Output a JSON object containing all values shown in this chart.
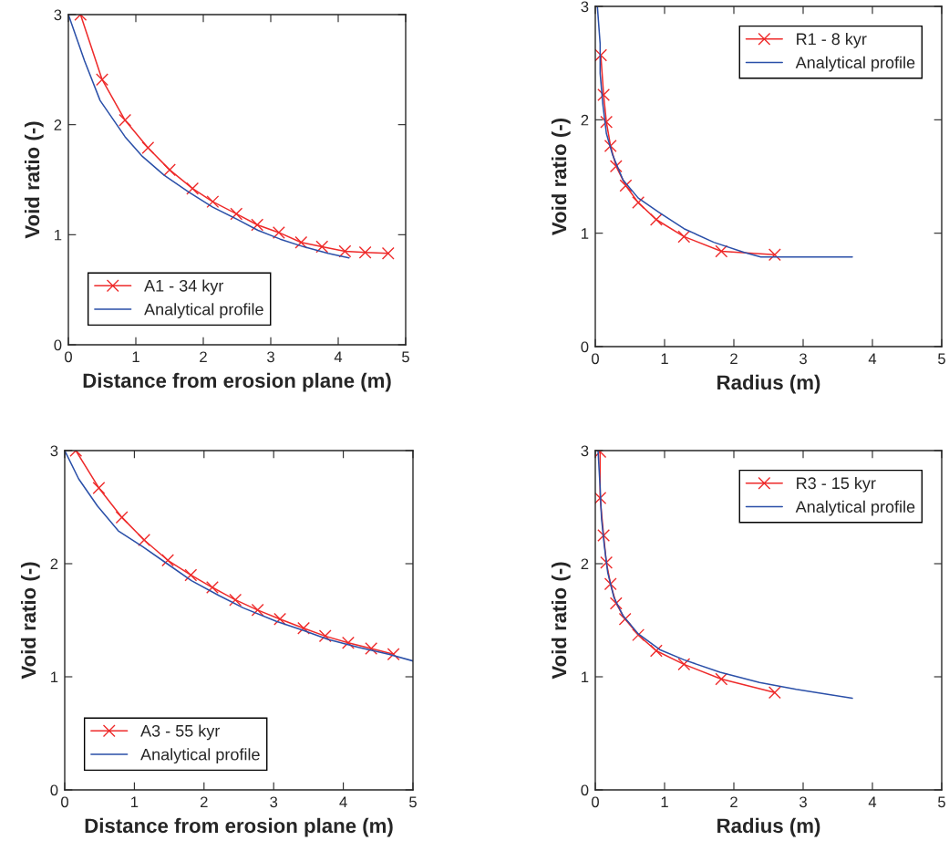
{
  "chart_data": [
    {
      "type": "line",
      "xlabel": "Distance from erosion plane (m)",
      "ylabel": "Void ratio (-)",
      "xlim": [
        0,
        5
      ],
      "ylim": [
        0,
        3
      ],
      "xticks": [
        0,
        1,
        2,
        3,
        4,
        5
      ],
      "yticks": [
        0,
        1,
        2,
        3
      ],
      "grid": false,
      "legend": "bottom left",
      "series": [
        {
          "name": "A1 - 34 kyr",
          "color": "#ee2a2a",
          "marker": "cross",
          "x": [
            0.18,
            0.5,
            0.84,
            1.18,
            1.5,
            1.84,
            2.14,
            2.49,
            2.8,
            3.12,
            3.45,
            3.76,
            4.1,
            4.4,
            4.74
          ],
          "values": [
            3.0,
            2.41,
            2.04,
            1.79,
            1.59,
            1.42,
            1.3,
            1.19,
            1.09,
            1.02,
            0.93,
            0.89,
            0.85,
            0.84,
            0.83
          ]
        },
        {
          "name": "Analytical profile",
          "color": "#2a4fa8",
          "marker": "none",
          "x": [
            0,
            0.24,
            0.47,
            0.84,
            1.1,
            1.42,
            1.78,
            2.14,
            2.5,
            2.81,
            3.14,
            3.49,
            3.85,
            4.16
          ],
          "values": [
            3.0,
            2.58,
            2.22,
            1.89,
            1.71,
            1.54,
            1.39,
            1.25,
            1.14,
            1.04,
            0.96,
            0.89,
            0.83,
            0.79
          ]
        }
      ]
    },
    {
      "type": "line",
      "xlabel": "Radius (m)",
      "ylabel": "Void ratio (-)",
      "xlim": [
        0,
        5
      ],
      "ylim": [
        0,
        3
      ],
      "xticks": [
        0,
        1,
        2,
        3,
        4,
        5
      ],
      "yticks": [
        0,
        1,
        2,
        3
      ],
      "grid": false,
      "legend": "top right",
      "series": [
        {
          "name": "R1 - 8 kyr",
          "color": "#ee2a2a",
          "marker": "cross",
          "x": [
            0.08,
            0.12,
            0.16,
            0.22,
            0.3,
            0.44,
            0.62,
            0.88,
            1.28,
            1.82,
            2.59
          ],
          "values": [
            2.57,
            2.22,
            1.98,
            1.77,
            1.59,
            1.42,
            1.27,
            1.12,
            0.97,
            0.84,
            0.81
          ]
        },
        {
          "name": "Analytical profile",
          "color": "#2a4fa8",
          "marker": "none",
          "x": [
            0.03,
            0.07,
            0.07,
            0.11,
            0.16,
            0.25,
            0.4,
            0.62,
            0.93,
            1.28,
            1.71,
            2.15,
            2.39,
            3.71
          ],
          "values": [
            3.0,
            2.67,
            2.41,
            2.13,
            1.88,
            1.69,
            1.47,
            1.31,
            1.18,
            1.04,
            0.92,
            0.83,
            0.79,
            0.79
          ]
        }
      ]
    },
    {
      "type": "line",
      "xlabel": "Distance from erosion plane (m)",
      "ylabel": "Void ratio (-)",
      "xlim": [
        0,
        5
      ],
      "ylim": [
        0,
        3
      ],
      "xticks": [
        0,
        1,
        2,
        3,
        4,
        5
      ],
      "yticks": [
        0,
        1,
        2,
        3
      ],
      "grid": false,
      "legend": "bottom left",
      "series": [
        {
          "name": "A3 - 55 kyr",
          "color": "#ee2a2a",
          "marker": "cross",
          "x": [
            0.16,
            0.49,
            0.82,
            1.14,
            1.48,
            1.81,
            2.12,
            2.45,
            2.77,
            3.09,
            3.43,
            3.74,
            4.07,
            4.4,
            4.72
          ],
          "values": [
            3.0,
            2.67,
            2.41,
            2.21,
            2.03,
            1.9,
            1.79,
            1.68,
            1.59,
            1.51,
            1.43,
            1.36,
            1.3,
            1.25,
            1.2
          ]
        },
        {
          "name": "Analytical profile",
          "color": "#2a4fa8",
          "marker": "none",
          "x": [
            0,
            0.2,
            0.47,
            0.77,
            1.12,
            1.47,
            1.82,
            2.21,
            2.56,
            3.04,
            3.43,
            3.78,
            4.22,
            4.65,
            5.0
          ],
          "values": [
            3.0,
            2.75,
            2.51,
            2.29,
            2.15,
            2.0,
            1.85,
            1.72,
            1.61,
            1.49,
            1.41,
            1.33,
            1.26,
            1.2,
            1.14
          ]
        }
      ]
    },
    {
      "type": "line",
      "xlabel": "Radius (m)",
      "ylabel": "Void ratio (-)",
      "xlim": [
        0,
        5
      ],
      "ylim": [
        0,
        3
      ],
      "xticks": [
        0,
        1,
        2,
        3,
        4,
        5
      ],
      "yticks": [
        0,
        1,
        2,
        3
      ],
      "grid": false,
      "legend": "top right",
      "series": [
        {
          "name": "R3 - 15 kyr",
          "color": "#ee2a2a",
          "marker": "cross",
          "x": [
            0.07,
            0.07,
            0.12,
            0.16,
            0.22,
            0.3,
            0.43,
            0.62,
            0.88,
            1.28,
            1.82,
            2.59
          ],
          "values": [
            2.99,
            2.58,
            2.25,
            2.01,
            1.82,
            1.65,
            1.51,
            1.37,
            1.23,
            1.11,
            0.98,
            0.86
          ]
        },
        {
          "name": "Analytical profile",
          "color": "#2a4fa8",
          "marker": "none",
          "x": [
            0.04,
            0.07,
            0.09,
            0.13,
            0.18,
            0.27,
            0.4,
            0.62,
            0.93,
            1.28,
            1.8,
            2.37,
            2.9,
            3.71
          ],
          "values": [
            3.0,
            2.67,
            2.4,
            2.16,
            1.92,
            1.7,
            1.54,
            1.38,
            1.24,
            1.15,
            1.04,
            0.95,
            0.89,
            0.81
          ]
        }
      ]
    }
  ]
}
